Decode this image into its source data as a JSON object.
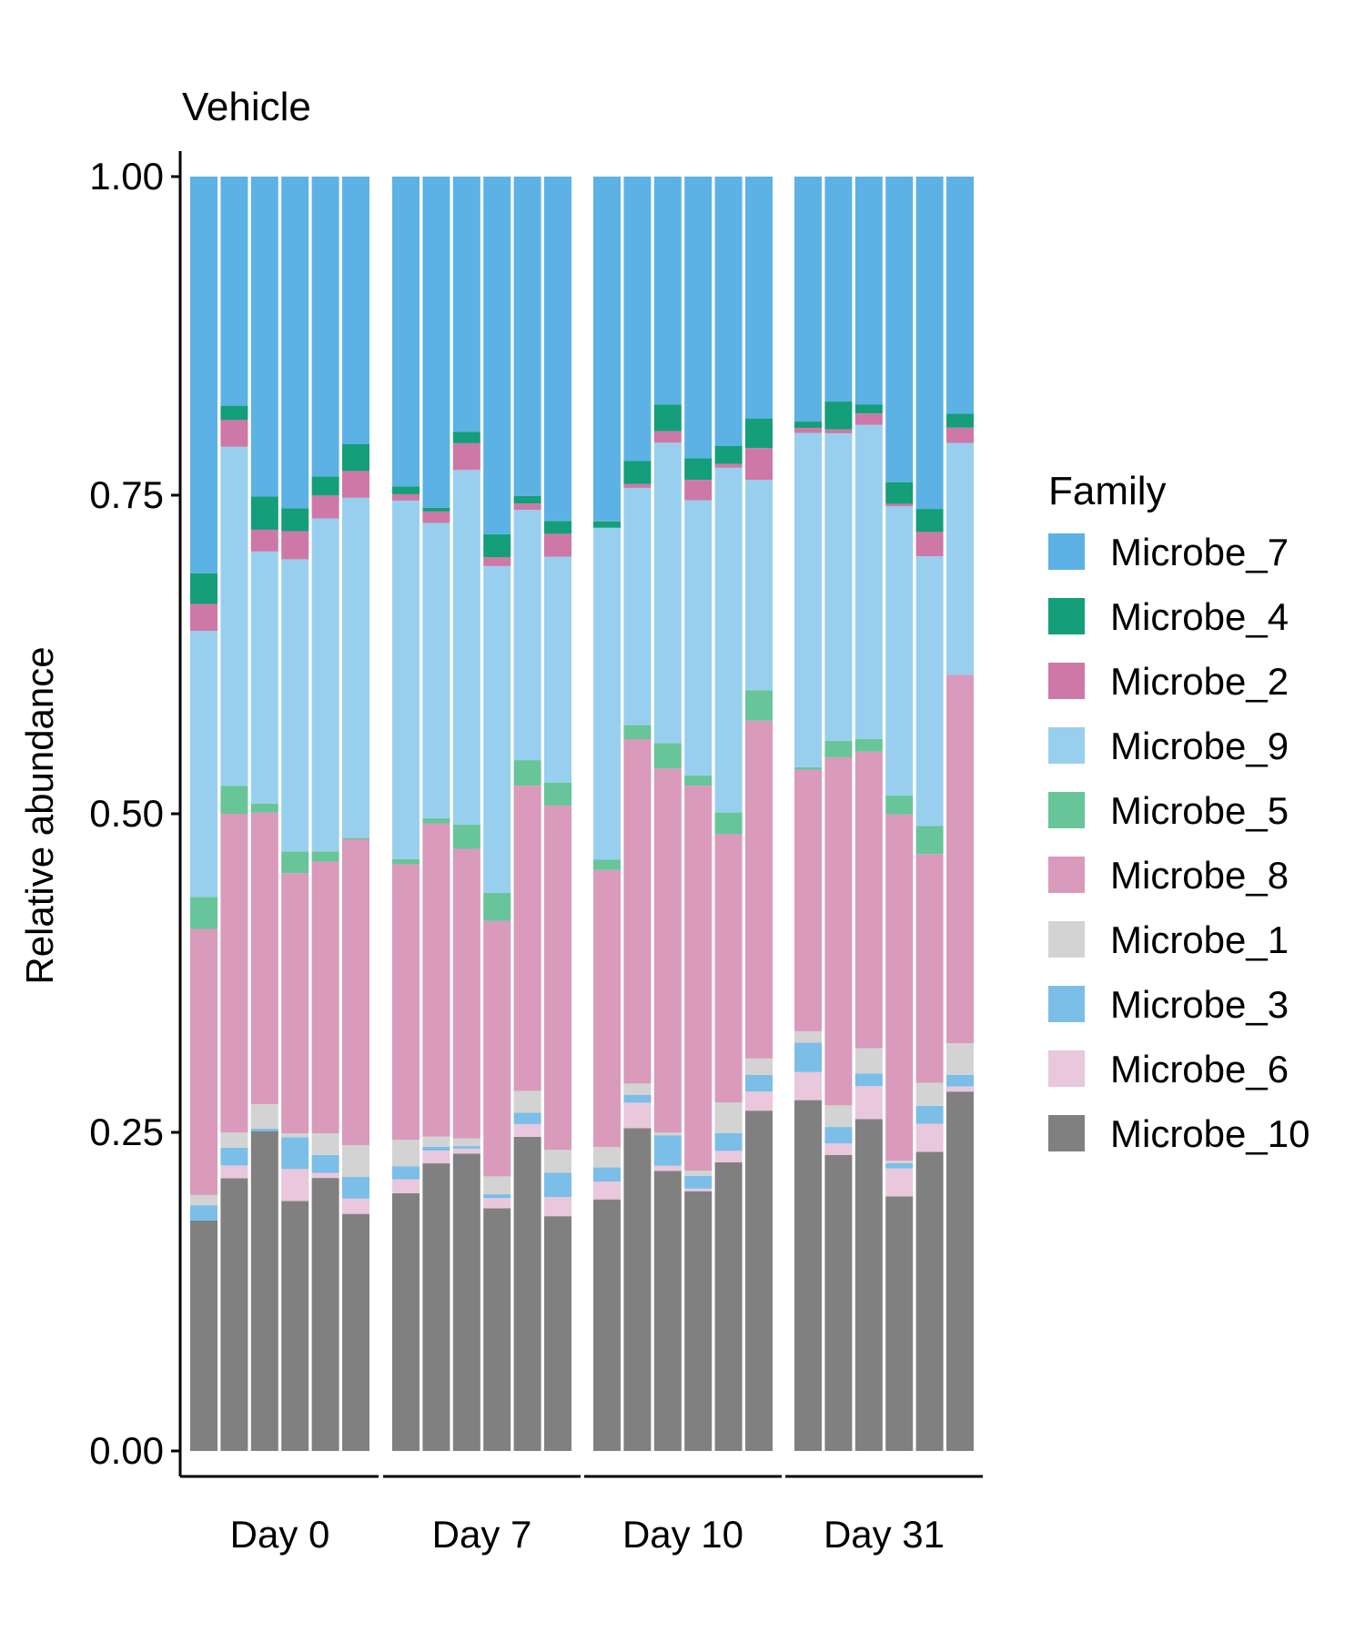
{
  "chart_data": {
    "type": "bar",
    "stacked": true,
    "title": "Vehicle",
    "xlabel": "",
    "ylabel": "Relative abundance",
    "ylim": [
      0,
      1
    ],
    "yticks": [
      "0.00",
      "0.25",
      "0.50",
      "0.75",
      "1.00"
    ],
    "groups": [
      "Day 0",
      "Day 7",
      "Day 10",
      "Day 31"
    ],
    "bars_per_group": 6,
    "legend_title": "Family",
    "legend_position": "right",
    "grid": false,
    "series": [
      {
        "name": "Microbe_10",
        "color": "#808080",
        "values": [
          0.18,
          0.214,
          0.25,
          0.196,
          0.214,
          0.186,
          0.202,
          0.225,
          0.233,
          0.19,
          0.246,
          0.184,
          0.197,
          0.253,
          0.22,
          0.203,
          0.226,
          0.267,
          0.275,
          0.233,
          0.262,
          0.2,
          0.234,
          0.282
        ]
      },
      {
        "name": "Microbe_6",
        "color": "#E9C7DD",
        "values": [
          0.0,
          0.01,
          0.0,
          0.025,
          0.004,
          0.012,
          0.011,
          0.01,
          0.004,
          0.008,
          0.01,
          0.015,
          0.014,
          0.02,
          0.004,
          0.002,
          0.009,
          0.015,
          0.022,
          0.009,
          0.026,
          0.022,
          0.022,
          0.004
        ]
      },
      {
        "name": "Microbe_3",
        "color": "#7BBEE8",
        "values": [
          0.012,
          0.014,
          0.002,
          0.025,
          0.014,
          0.017,
          0.01,
          0.003,
          0.002,
          0.003,
          0.009,
          0.019,
          0.011,
          0.006,
          0.024,
          0.01,
          0.014,
          0.013,
          0.023,
          0.013,
          0.01,
          0.004,
          0.014,
          0.009
        ]
      },
      {
        "name": "Microbe_1",
        "color": "#D3D3D3",
        "values": [
          0.008,
          0.012,
          0.019,
          0.003,
          0.017,
          0.025,
          0.021,
          0.008,
          0.006,
          0.014,
          0.017,
          0.018,
          0.016,
          0.009,
          0.002,
          0.004,
          0.024,
          0.013,
          0.009,
          0.017,
          0.02,
          0.002,
          0.018,
          0.025
        ]
      },
      {
        "name": "Microbe_8",
        "color": "#D99ABB",
        "values": [
          0.208,
          0.25,
          0.228,
          0.204,
          0.213,
          0.24,
          0.216,
          0.245,
          0.227,
          0.2,
          0.239,
          0.27,
          0.217,
          0.27,
          0.286,
          0.301,
          0.21,
          0.265,
          0.205,
          0.274,
          0.234,
          0.272,
          0.179,
          0.289
        ]
      },
      {
        "name": "Microbe_5",
        "color": "#67C599",
        "values": [
          0.025,
          0.022,
          0.007,
          0.017,
          0.008,
          0.001,
          0.004,
          0.004,
          0.019,
          0.022,
          0.02,
          0.018,
          0.008,
          0.011,
          0.02,
          0.008,
          0.017,
          0.024,
          0.002,
          0.013,
          0.01,
          0.015,
          0.022,
          0.0
        ]
      },
      {
        "name": "Microbe_9",
        "color": "#99CFEE",
        "values": [
          0.208,
          0.266,
          0.197,
          0.229,
          0.261,
          0.267,
          0.281,
          0.231,
          0.278,
          0.256,
          0.196,
          0.177,
          0.26,
          0.186,
          0.236,
          0.215,
          0.27,
          0.165,
          0.262,
          0.242,
          0.248,
          0.227,
          0.211,
          0.182
        ]
      },
      {
        "name": "Microbe_2",
        "color": "#CE78A7",
        "values": [
          0.021,
          0.021,
          0.017,
          0.022,
          0.018,
          0.021,
          0.005,
          0.009,
          0.021,
          0.007,
          0.005,
          0.018,
          0.0,
          0.003,
          0.009,
          0.016,
          0.003,
          0.025,
          0.004,
          0.003,
          0.009,
          0.002,
          0.019,
          0.012
        ]
      },
      {
        "name": "Microbe_4",
        "color": "#149E7A",
        "values": [
          0.024,
          0.011,
          0.026,
          0.018,
          0.015,
          0.021,
          0.006,
          0.003,
          0.009,
          0.018,
          0.006,
          0.01,
          0.005,
          0.018,
          0.021,
          0.017,
          0.014,
          0.023,
          0.005,
          0.022,
          0.007,
          0.017,
          0.018,
          0.011
        ]
      },
      {
        "name": "Microbe_7",
        "color": "#5CB2E4",
        "values": [
          0.31,
          0.18,
          0.25,
          0.26,
          0.235,
          0.21,
          0.243,
          0.259,
          0.2,
          0.28,
          0.25,
          0.27,
          0.27,
          0.223,
          0.179,
          0.22,
          0.211,
          0.19,
          0.192,
          0.177,
          0.18,
          0.24,
          0.26,
          0.186
        ]
      }
    ],
    "legend_order": [
      "Microbe_7",
      "Microbe_4",
      "Microbe_2",
      "Microbe_9",
      "Microbe_5",
      "Microbe_8",
      "Microbe_1",
      "Microbe_3",
      "Microbe_6",
      "Microbe_10"
    ]
  }
}
